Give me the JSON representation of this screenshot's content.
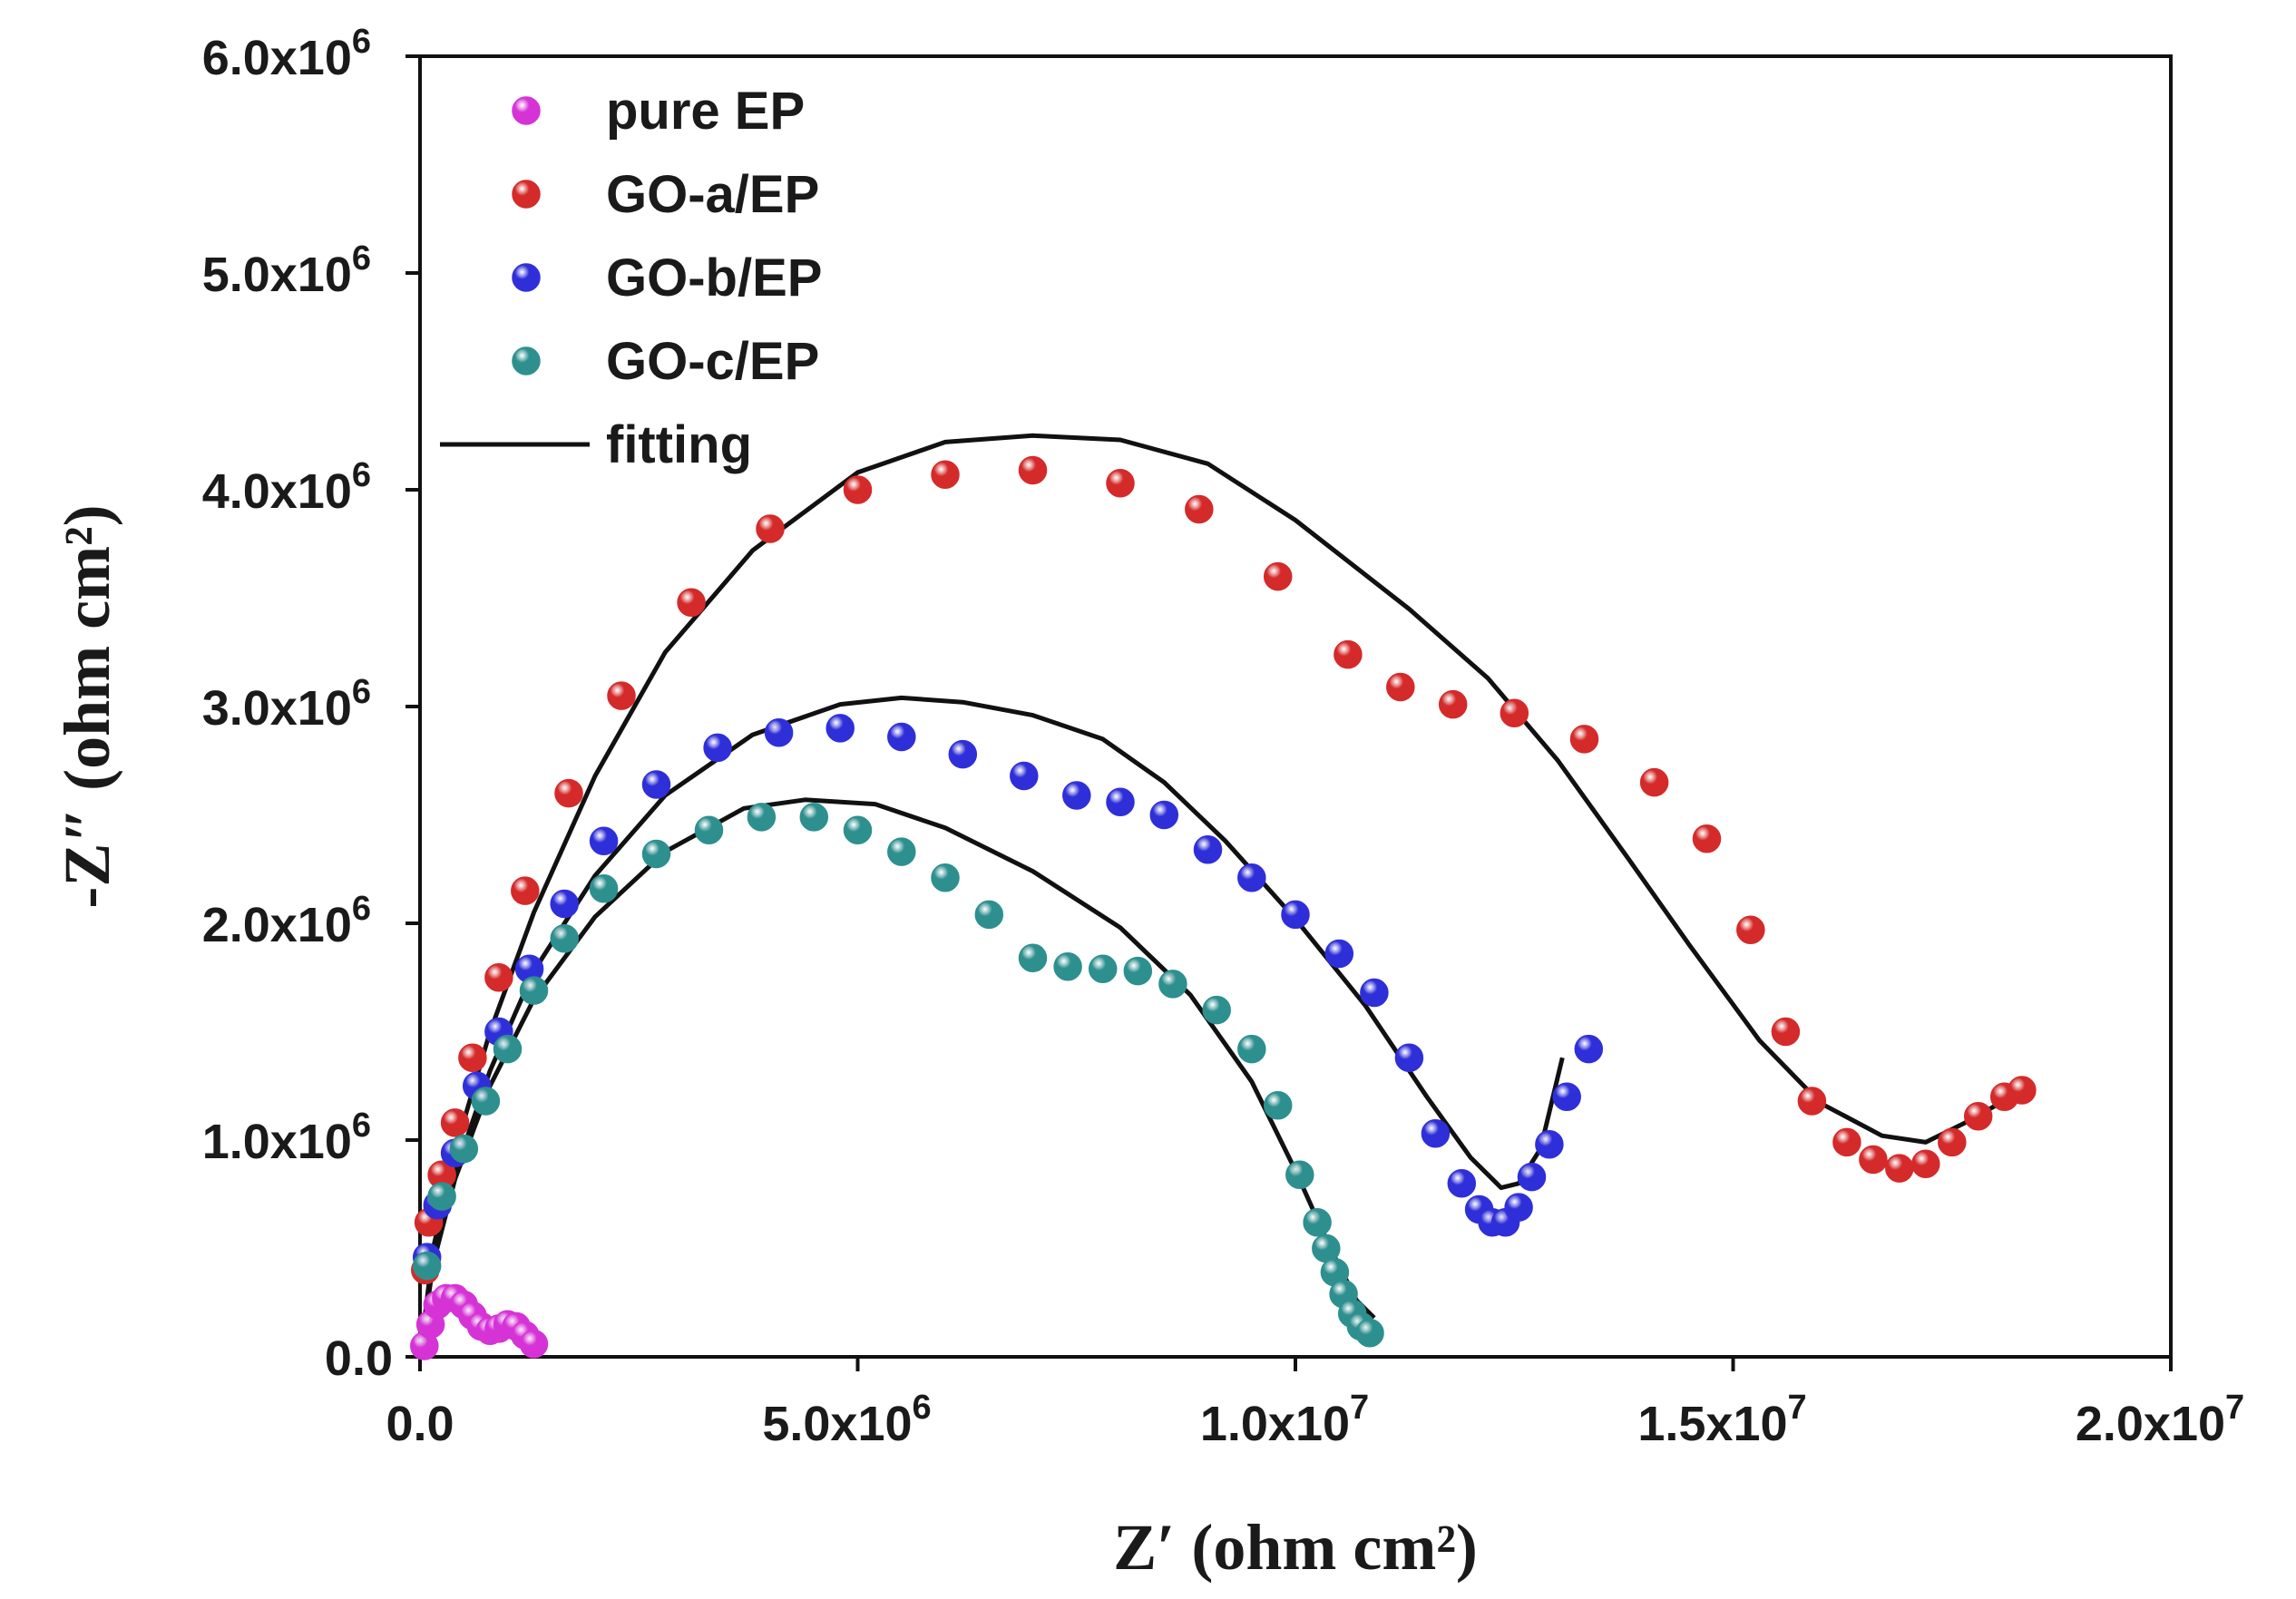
{
  "chart_data": {
    "type": "scatter",
    "title": "",
    "xlabel": "Z′ (ohm cm²)",
    "ylabel": "-Z″ (ohm cm²)",
    "xlim": [
      0,
      20000000
    ],
    "ylim": [
      0,
      6000000
    ],
    "x_ticks": [
      {
        "value": 0,
        "label": "0.0"
      },
      {
        "value": 5000000,
        "label": "5.0x10",
        "exp": "6"
      },
      {
        "value": 10000000,
        "label": "1.0x10",
        "exp": "7"
      },
      {
        "value": 15000000,
        "label": "1.5x10",
        "exp": "7"
      },
      {
        "value": 20000000,
        "label": "2.0x10",
        "exp": "7"
      }
    ],
    "y_ticks": [
      {
        "value": 0,
        "label": "0.0"
      },
      {
        "value": 1000000,
        "label": "1.0x10",
        "exp": "6"
      },
      {
        "value": 2000000,
        "label": "2.0x10",
        "exp": "6"
      },
      {
        "value": 3000000,
        "label": "3.0x10",
        "exp": "6"
      },
      {
        "value": 4000000,
        "label": "4.0x10",
        "exp": "6"
      },
      {
        "value": 5000000,
        "label": "5.0x10",
        "exp": "6"
      },
      {
        "value": 6000000,
        "label": "6.0x10",
        "exp": "6"
      }
    ],
    "grid": false,
    "legend_position": "top-left",
    "series": [
      {
        "name": "pure EP",
        "color": "#d633d6",
        "points": [
          [
            50000,
            50000
          ],
          [
            120000,
            150000
          ],
          [
            200000,
            240000
          ],
          [
            300000,
            270000
          ],
          [
            400000,
            270000
          ],
          [
            500000,
            240000
          ],
          [
            600000,
            190000
          ],
          [
            700000,
            140000
          ],
          [
            800000,
            120000
          ],
          [
            900000,
            130000
          ],
          [
            1000000,
            150000
          ],
          [
            1100000,
            140000
          ],
          [
            1200000,
            100000
          ],
          [
            1300000,
            60000
          ]
        ]
      },
      {
        "name": "GO-a/EP",
        "color": "#d42a2a",
        "points": [
          [
            60000,
            400000
          ],
          [
            100000,
            620000
          ],
          [
            250000,
            840000
          ],
          [
            400000,
            1080000
          ],
          [
            600000,
            1380000
          ],
          [
            900000,
            1750000
          ],
          [
            1200000,
            2150000
          ],
          [
            1700000,
            2600000
          ],
          [
            2300000,
            3050000
          ],
          [
            3100000,
            3480000
          ],
          [
            4000000,
            3820000
          ],
          [
            5000000,
            4000000
          ],
          [
            6000000,
            4070000
          ],
          [
            7000000,
            4090000
          ],
          [
            8000000,
            4030000
          ],
          [
            8900000,
            3910000
          ],
          [
            9800000,
            3600000
          ],
          [
            10600000,
            3240000
          ],
          [
            11200000,
            3090000
          ],
          [
            11800000,
            3010000
          ],
          [
            12500000,
            2970000
          ],
          [
            13300000,
            2850000
          ],
          [
            14100000,
            2650000
          ],
          [
            14700000,
            2390000
          ],
          [
            15200000,
            1970000
          ],
          [
            15600000,
            1500000
          ],
          [
            15900000,
            1180000
          ],
          [
            16300000,
            990000
          ],
          [
            16600000,
            910000
          ],
          [
            16900000,
            870000
          ],
          [
            17200000,
            890000
          ],
          [
            17500000,
            990000
          ],
          [
            17800000,
            1110000
          ],
          [
            18100000,
            1200000
          ],
          [
            18300000,
            1230000
          ]
        ]
      },
      {
        "name": "GO-b/EP",
        "color": "#2f2fd9",
        "points": [
          [
            80000,
            460000
          ],
          [
            200000,
            700000
          ],
          [
            400000,
            940000
          ],
          [
            650000,
            1250000
          ],
          [
            900000,
            1500000
          ],
          [
            1250000,
            1790000
          ],
          [
            1650000,
            2090000
          ],
          [
            2100000,
            2380000
          ],
          [
            2700000,
            2640000
          ],
          [
            3400000,
            2810000
          ],
          [
            4100000,
            2880000
          ],
          [
            4800000,
            2900000
          ],
          [
            5500000,
            2860000
          ],
          [
            6200000,
            2780000
          ],
          [
            6900000,
            2680000
          ],
          [
            7500000,
            2590000
          ],
          [
            8000000,
            2560000
          ],
          [
            8500000,
            2500000
          ],
          [
            9000000,
            2340000
          ],
          [
            9500000,
            2210000
          ],
          [
            10000000,
            2040000
          ],
          [
            10500000,
            1860000
          ],
          [
            10900000,
            1680000
          ],
          [
            11300000,
            1380000
          ],
          [
            11600000,
            1030000
          ],
          [
            11900000,
            800000
          ],
          [
            12100000,
            680000
          ],
          [
            12250000,
            620000
          ],
          [
            12400000,
            620000
          ],
          [
            12550000,
            690000
          ],
          [
            12700000,
            830000
          ],
          [
            12900000,
            980000
          ],
          [
            13100000,
            1200000
          ],
          [
            13350000,
            1420000
          ]
        ]
      },
      {
        "name": "GO-c/EP",
        "color": "#2e8f8f",
        "points": [
          [
            80000,
            420000
          ],
          [
            250000,
            740000
          ],
          [
            500000,
            960000
          ],
          [
            750000,
            1180000
          ],
          [
            1000000,
            1420000
          ],
          [
            1300000,
            1690000
          ],
          [
            1650000,
            1930000
          ],
          [
            2100000,
            2160000
          ],
          [
            2700000,
            2320000
          ],
          [
            3300000,
            2430000
          ],
          [
            3900000,
            2490000
          ],
          [
            4500000,
            2490000
          ],
          [
            5000000,
            2430000
          ],
          [
            5500000,
            2330000
          ],
          [
            6000000,
            2210000
          ],
          [
            6500000,
            2040000
          ],
          [
            7000000,
            1840000
          ],
          [
            7400000,
            1800000
          ],
          [
            7800000,
            1790000
          ],
          [
            8200000,
            1780000
          ],
          [
            8600000,
            1720000
          ],
          [
            9100000,
            1600000
          ],
          [
            9500000,
            1420000
          ],
          [
            9800000,
            1160000
          ],
          [
            10050000,
            840000
          ],
          [
            10250000,
            620000
          ],
          [
            10350000,
            500000
          ],
          [
            10450000,
            390000
          ],
          [
            10550000,
            290000
          ],
          [
            10650000,
            200000
          ],
          [
            10750000,
            140000
          ],
          [
            10850000,
            110000
          ]
        ]
      }
    ],
    "fit_curves": [
      {
        "name": "pure EP fit",
        "points": [
          [
            50000,
            80000
          ],
          [
            150000,
            200000
          ],
          [
            300000,
            280000
          ],
          [
            450000,
            260000
          ],
          [
            600000,
            170000
          ],
          [
            750000,
            110000
          ],
          [
            900000,
            110000
          ],
          [
            1100000,
            130000
          ],
          [
            1300000,
            100000
          ]
        ]
      },
      {
        "name": "GO-a/EP fit",
        "points": [
          [
            0,
            0
          ],
          [
            150000,
            500000
          ],
          [
            400000,
            950000
          ],
          [
            800000,
            1500000
          ],
          [
            1300000,
            2050000
          ],
          [
            2000000,
            2680000
          ],
          [
            2800000,
            3250000
          ],
          [
            3800000,
            3720000
          ],
          [
            5000000,
            4080000
          ],
          [
            6000000,
            4220000
          ],
          [
            7000000,
            4250000
          ],
          [
            8000000,
            4230000
          ],
          [
            9000000,
            4120000
          ],
          [
            10000000,
            3860000
          ],
          [
            11300000,
            3450000
          ],
          [
            12200000,
            3130000
          ],
          [
            13000000,
            2750000
          ],
          [
            13800000,
            2300000
          ],
          [
            14500000,
            1900000
          ],
          [
            15300000,
            1460000
          ],
          [
            16000000,
            1170000
          ],
          [
            16700000,
            1020000
          ],
          [
            17200000,
            990000
          ],
          [
            17700000,
            1090000
          ],
          [
            18000000,
            1160000
          ],
          [
            18200000,
            1240000
          ]
        ]
      },
      {
        "name": "GO-b/EP fit",
        "points": [
          [
            0,
            0
          ],
          [
            150000,
            450000
          ],
          [
            400000,
            850000
          ],
          [
            800000,
            1320000
          ],
          [
            1300000,
            1780000
          ],
          [
            2000000,
            2220000
          ],
          [
            2800000,
            2590000
          ],
          [
            3800000,
            2870000
          ],
          [
            4800000,
            3010000
          ],
          [
            5500000,
            3040000
          ],
          [
            6200000,
            3020000
          ],
          [
            7000000,
            2960000
          ],
          [
            7800000,
            2850000
          ],
          [
            8500000,
            2650000
          ],
          [
            9200000,
            2380000
          ],
          [
            10000000,
            2020000
          ],
          [
            10800000,
            1620000
          ],
          [
            11500000,
            1200000
          ],
          [
            12000000,
            920000
          ],
          [
            12350000,
            780000
          ],
          [
            12550000,
            800000
          ],
          [
            12800000,
            960000
          ],
          [
            13050000,
            1380000
          ]
        ]
      },
      {
        "name": "GO-c/EP fit",
        "points": [
          [
            0,
            0
          ],
          [
            150000,
            430000
          ],
          [
            400000,
            820000
          ],
          [
            800000,
            1250000
          ],
          [
            1300000,
            1650000
          ],
          [
            2000000,
            2030000
          ],
          [
            2800000,
            2330000
          ],
          [
            3700000,
            2530000
          ],
          [
            4400000,
            2570000
          ],
          [
            5200000,
            2550000
          ],
          [
            6000000,
            2440000
          ],
          [
            7000000,
            2240000
          ],
          [
            8000000,
            1980000
          ],
          [
            8800000,
            1670000
          ],
          [
            9500000,
            1270000
          ],
          [
            10000000,
            860000
          ],
          [
            10400000,
            500000
          ],
          [
            10700000,
            260000
          ],
          [
            10900000,
            180000
          ]
        ]
      }
    ],
    "legend": [
      {
        "label": "pure EP",
        "kind": "marker",
        "color": "#d633d6"
      },
      {
        "label": "GO-a/EP",
        "kind": "marker",
        "color": "#d42a2a"
      },
      {
        "label": "GO-b/EP",
        "kind": "marker",
        "color": "#2f2fd9"
      },
      {
        "label": "GO-c/EP",
        "kind": "marker",
        "color": "#2e8f8f"
      },
      {
        "label": "fitting",
        "kind": "line",
        "color": "#111111"
      }
    ]
  }
}
